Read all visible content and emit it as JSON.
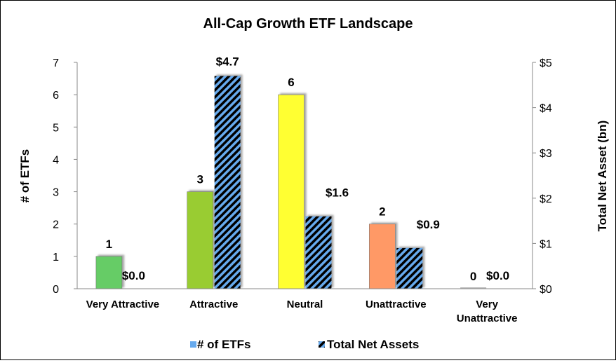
{
  "chart_data": {
    "type": "bar",
    "title": "All-Cap Growth ETF Landscape",
    "categories": [
      "Very Attractive",
      "Attractive",
      "Neutral",
      "Unattractive",
      "Very Unattractive"
    ],
    "category_lines": [
      [
        "Very Attractive"
      ],
      [
        "Attractive"
      ],
      [
        "Neutral"
      ],
      [
        "Unattractive"
      ],
      [
        "Very",
        "Unattractive"
      ]
    ],
    "ylabel": "# of ETFs",
    "y2label": "Total Net Asset (bn)",
    "ylim": [
      0,
      7
    ],
    "y2lim": [
      0,
      5
    ],
    "yticks": [
      "0",
      "1",
      "2",
      "3",
      "4",
      "5",
      "6",
      "7"
    ],
    "y2ticks": [
      "$0",
      "$1",
      "$2",
      "$3",
      "$4",
      "$5"
    ],
    "series": [
      {
        "name": "# of ETFs",
        "axis": "left",
        "values": [
          1,
          3,
          6,
          2,
          0
        ],
        "labels": [
          "1",
          "3",
          "6",
          "2",
          "0"
        ],
        "colors": [
          "#66cc66",
          "#99cc33",
          "#ffff33",
          "#ff9966",
          "#cccccc"
        ],
        "legend_color": "#66aaee"
      },
      {
        "name": "Total Net Assets",
        "axis": "right",
        "values": [
          0.0,
          4.7,
          1.6,
          0.9,
          0.0
        ],
        "labels": [
          "$0.0",
          "$4.7",
          "$1.6",
          "$0.9",
          "$0.0"
        ],
        "pattern": "diagonal-stripes",
        "colors": [
          "#000000",
          "#66aaee"
        ]
      }
    ],
    "legend_position": "bottom",
    "grid": false
  }
}
